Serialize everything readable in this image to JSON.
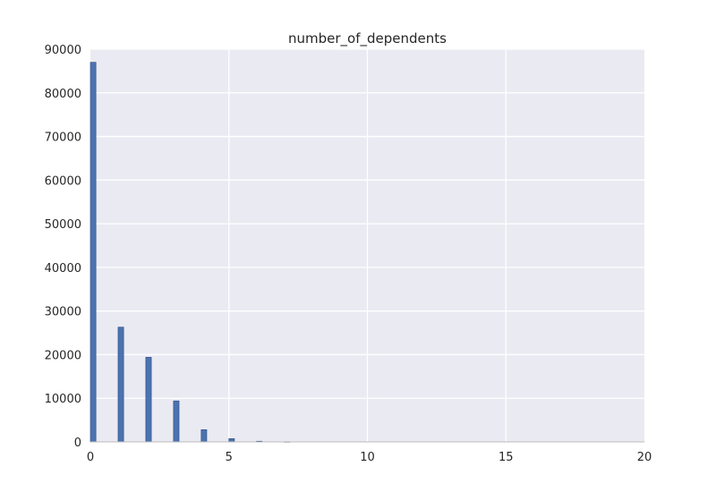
{
  "chart_data": {
    "type": "bar",
    "title": "number_of_dependents",
    "xlabel": "",
    "ylabel": "",
    "xlim": [
      0,
      20
    ],
    "ylim": [
      0,
      90000
    ],
    "grid": true,
    "x_ticks": [
      0,
      5,
      10,
      15,
      20
    ],
    "y_ticks": [
      0,
      10000,
      20000,
      30000,
      40000,
      50000,
      60000,
      70000,
      80000,
      90000
    ],
    "bin_width": 0.2,
    "bars": [
      {
        "x": 0,
        "value": 87000
      },
      {
        "x": 1,
        "value": 26300
      },
      {
        "x": 2,
        "value": 19400
      },
      {
        "x": 3,
        "value": 9400
      },
      {
        "x": 4,
        "value": 2800
      },
      {
        "x": 5,
        "value": 750
      },
      {
        "x": 6,
        "value": 160
      },
      {
        "x": 7,
        "value": 50
      }
    ],
    "colors": {
      "bar_fill": "#4c72b0",
      "bar_edge": "#2a4a7f",
      "plot_background": "#eaeaf2",
      "grid": "#ffffff"
    }
  }
}
